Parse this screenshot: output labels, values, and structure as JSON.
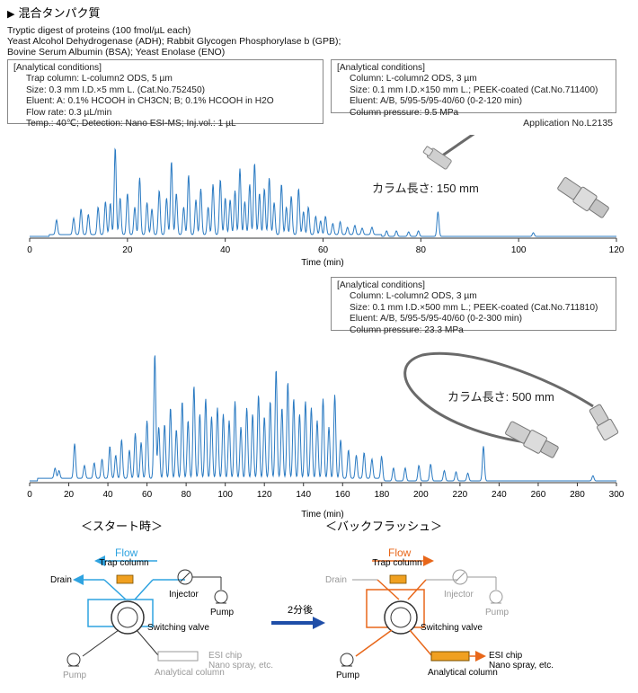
{
  "header": {
    "title_marker": "▶",
    "title": "混合タンパク質",
    "sample_lines": [
      "Tryptic digest of proteins (100 fmol/µL each)",
      "Yeast Alcohol Dehydrogenase (ADH); Rabbit Glycogen Phosphorylase b (GPB);",
      "Bovine Serum Albumin (BSA); Yeast Enolase (ENO)"
    ]
  },
  "conditions_left": {
    "heading": "[Analytical conditions]",
    "lines": [
      "Trap column: L-column2 ODS, 5 µm",
      "Size: 0.3 mm I.D.×5 mm L. (Cat.No.752450)",
      "Eluent: A: 0.1% HCOOH in CH3CN; B; 0.1% HCOOH in H2O",
      "Flow rate: 0.3 µL/min",
      "Temp.: 40℃; Detection: Nano ESI-MS; Inj.vol.: 1 µL"
    ]
  },
  "conditions_right_1": {
    "heading": "[Analytical conditions]",
    "lines": [
      "Column: L-column2 ODS, 3 µm",
      "Size: 0.1 mm I.D.×150 mm L.; PEEK-coated (Cat.No.711400)",
      "Eluent: A/B, 5/95-5/95-40/60 (0-2-120 min)",
      "Column pressure: 9.5 MPa"
    ]
  },
  "application_no": "Application No.L2135",
  "conditions_right_2": {
    "heading": "[Analytical conditions]",
    "lines": [
      "Column: L-column2 ODS, 3 µm",
      "Size: 0.1 mm I.D.×500 mm L.; PEEK-coated (Cat.No.711810)",
      "Eluent: A/B, 5/95-5/95-40/60 (0-2-300 min)",
      "Column pressure: 23.3 MPa"
    ]
  },
  "chart_data": [
    {
      "type": "line",
      "series_color": "#2a7ac2",
      "xlabel": "Time (min)",
      "xlim": [
        0,
        120
      ],
      "xticks": [
        0,
        20,
        40,
        60,
        80,
        100,
        120
      ],
      "annotation": "カラム長さ: 150 mm",
      "peaks": [
        {
          "x": 5.5,
          "h": 0.16
        },
        {
          "x": 9,
          "h": 0.18
        },
        {
          "x": 10.5,
          "h": 0.28
        },
        {
          "x": 12,
          "h": 0.22
        },
        {
          "x": 14,
          "h": 0.3
        },
        {
          "x": 15.5,
          "h": 0.36
        },
        {
          "x": 16.5,
          "h": 0.34
        },
        {
          "x": 17.5,
          "h": 0.95
        },
        {
          "x": 18.5,
          "h": 0.4
        },
        {
          "x": 20,
          "h": 0.45
        },
        {
          "x": 21.5,
          "h": 0.3
        },
        {
          "x": 22.5,
          "h": 0.62
        },
        {
          "x": 24,
          "h": 0.35
        },
        {
          "x": 25,
          "h": 0.28
        },
        {
          "x": 26.5,
          "h": 0.48
        },
        {
          "x": 28,
          "h": 0.4
        },
        {
          "x": 29,
          "h": 0.8
        },
        {
          "x": 30,
          "h": 0.45
        },
        {
          "x": 31.5,
          "h": 0.3
        },
        {
          "x": 32.5,
          "h": 0.65
        },
        {
          "x": 34,
          "h": 0.38
        },
        {
          "x": 35,
          "h": 0.5
        },
        {
          "x": 36.5,
          "h": 0.3
        },
        {
          "x": 37.5,
          "h": 0.55
        },
        {
          "x": 39,
          "h": 0.6
        },
        {
          "x": 40,
          "h": 0.4
        },
        {
          "x": 41,
          "h": 0.38
        },
        {
          "x": 42,
          "h": 0.48
        },
        {
          "x": 43,
          "h": 0.72
        },
        {
          "x": 44,
          "h": 0.36
        },
        {
          "x": 45,
          "h": 0.55
        },
        {
          "x": 46,
          "h": 0.78
        },
        {
          "x": 47,
          "h": 0.45
        },
        {
          "x": 48,
          "h": 0.5
        },
        {
          "x": 49,
          "h": 0.62
        },
        {
          "x": 50,
          "h": 0.35
        },
        {
          "x": 51.5,
          "h": 0.55
        },
        {
          "x": 52.5,
          "h": 0.3
        },
        {
          "x": 53.5,
          "h": 0.42
        },
        {
          "x": 55,
          "h": 0.5
        },
        {
          "x": 56,
          "h": 0.25
        },
        {
          "x": 57,
          "h": 0.3
        },
        {
          "x": 58.5,
          "h": 0.2
        },
        {
          "x": 59.5,
          "h": 0.15
        },
        {
          "x": 60.5,
          "h": 0.2
        },
        {
          "x": 62,
          "h": 0.12
        },
        {
          "x": 63.5,
          "h": 0.14
        },
        {
          "x": 65,
          "h": 0.08
        },
        {
          "x": 66.5,
          "h": 0.1
        },
        {
          "x": 68,
          "h": 0.07
        },
        {
          "x": 70,
          "h": 0.08
        },
        {
          "x": 73,
          "h": 0.06
        },
        {
          "x": 75,
          "h": 0.06
        },
        {
          "x": 77.5,
          "h": 0.05
        },
        {
          "x": 79.5,
          "h": 0.06
        },
        {
          "x": 83.5,
          "h": 0.27
        },
        {
          "x": 103,
          "h": 0.04
        }
      ]
    },
    {
      "type": "line",
      "series_color": "#2a7ac2",
      "xlabel": "Time (min)",
      "xlim": [
        0,
        300
      ],
      "xticks": [
        0,
        20,
        40,
        60,
        80,
        100,
        120,
        140,
        160,
        180,
        200,
        220,
        240,
        260,
        280,
        300
      ],
      "annotation": "カラム長さ: 500 mm",
      "peaks": [
        {
          "x": 13,
          "h": 0.08
        },
        {
          "x": 15,
          "h": 0.06
        },
        {
          "x": 23,
          "h": 0.27
        },
        {
          "x": 28,
          "h": 0.1
        },
        {
          "x": 33,
          "h": 0.12
        },
        {
          "x": 37,
          "h": 0.15
        },
        {
          "x": 41,
          "h": 0.25
        },
        {
          "x": 44,
          "h": 0.18
        },
        {
          "x": 47,
          "h": 0.3
        },
        {
          "x": 51,
          "h": 0.22
        },
        {
          "x": 54,
          "h": 0.35
        },
        {
          "x": 57,
          "h": 0.28
        },
        {
          "x": 60,
          "h": 0.45
        },
        {
          "x": 64,
          "h": 0.97
        },
        {
          "x": 66,
          "h": 0.4
        },
        {
          "x": 69,
          "h": 0.42
        },
        {
          "x": 72,
          "h": 0.55
        },
        {
          "x": 75,
          "h": 0.38
        },
        {
          "x": 78,
          "h": 0.6
        },
        {
          "x": 81,
          "h": 0.45
        },
        {
          "x": 84,
          "h": 0.72
        },
        {
          "x": 87,
          "h": 0.5
        },
        {
          "x": 90,
          "h": 0.62
        },
        {
          "x": 93,
          "h": 0.48
        },
        {
          "x": 96,
          "h": 0.55
        },
        {
          "x": 99,
          "h": 0.5
        },
        {
          "x": 102,
          "h": 0.45
        },
        {
          "x": 105,
          "h": 0.6
        },
        {
          "x": 108,
          "h": 0.4
        },
        {
          "x": 111,
          "h": 0.55
        },
        {
          "x": 114,
          "h": 0.5
        },
        {
          "x": 117,
          "h": 0.65
        },
        {
          "x": 120,
          "h": 0.48
        },
        {
          "x": 123,
          "h": 0.6
        },
        {
          "x": 126,
          "h": 0.85
        },
        {
          "x": 129,
          "h": 0.55
        },
        {
          "x": 132,
          "h": 0.75
        },
        {
          "x": 135,
          "h": 0.62
        },
        {
          "x": 138,
          "h": 0.5
        },
        {
          "x": 141,
          "h": 0.6
        },
        {
          "x": 144,
          "h": 0.55
        },
        {
          "x": 147,
          "h": 0.45
        },
        {
          "x": 150,
          "h": 0.62
        },
        {
          "x": 153,
          "h": 0.4
        },
        {
          "x": 156,
          "h": 0.65
        },
        {
          "x": 159,
          "h": 0.3
        },
        {
          "x": 163,
          "h": 0.22
        },
        {
          "x": 167,
          "h": 0.18
        },
        {
          "x": 171,
          "h": 0.2
        },
        {
          "x": 175,
          "h": 0.15
        },
        {
          "x": 180,
          "h": 0.18
        },
        {
          "x": 186,
          "h": 0.1
        },
        {
          "x": 192,
          "h": 0.1
        },
        {
          "x": 199,
          "h": 0.12
        },
        {
          "x": 205,
          "h": 0.13
        },
        {
          "x": 212,
          "h": 0.08
        },
        {
          "x": 218,
          "h": 0.07
        },
        {
          "x": 224,
          "h": 0.06
        },
        {
          "x": 232,
          "h": 0.27
        },
        {
          "x": 288,
          "h": 0.04
        }
      ]
    }
  ],
  "flow_diagram": {
    "left_title": "＜スタート時＞",
    "right_title": "＜バックフラッシュ＞",
    "flow_label": "Flow",
    "transition_label": "2分後",
    "drain": "Drain",
    "trap_column": "Trap column",
    "injector": "Injector",
    "pump": "Pump",
    "switching_valve": "Switching valve",
    "esi_chip": "ESI chip",
    "nano_spray": "Nano spray, etc.",
    "analytical_column": "Analytical column",
    "colors": {
      "start_flow": "#2fa3e0",
      "backflush_flow": "#e8671a",
      "trap": "#f0a020",
      "arrow_blue": "#1f4ea8",
      "inactive": "#999999"
    }
  }
}
